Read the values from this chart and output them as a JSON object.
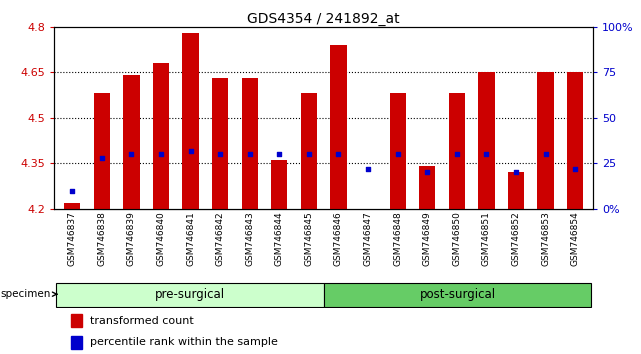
{
  "title": "GDS4354 / 241892_at",
  "samples": [
    "GSM746837",
    "GSM746838",
    "GSM746839",
    "GSM746840",
    "GSM746841",
    "GSM746842",
    "GSM746843",
    "GSM746844",
    "GSM746845",
    "GSM746846",
    "GSM746847",
    "GSM746848",
    "GSM746849",
    "GSM746850",
    "GSM746851",
    "GSM746852",
    "GSM746853",
    "GSM746854"
  ],
  "bar_tops": [
    4.22,
    4.58,
    4.64,
    4.68,
    4.78,
    4.63,
    4.63,
    4.36,
    4.58,
    4.74,
    4.14,
    4.58,
    4.34,
    4.58,
    4.65,
    4.32,
    4.65,
    4.65
  ],
  "percentile_vals": [
    10,
    28,
    30,
    30,
    32,
    30,
    30,
    30,
    30,
    30,
    22,
    30,
    20,
    30,
    30,
    20,
    30,
    22
  ],
  "bar_bottom": 4.2,
  "ylim_left": [
    4.2,
    4.8
  ],
  "ylim_right": [
    0,
    100
  ],
  "yticks_left": [
    4.2,
    4.35,
    4.5,
    4.65,
    4.8
  ],
  "yticks_right": [
    0,
    25,
    50,
    75,
    100
  ],
  "hlines": [
    4.35,
    4.5,
    4.65
  ],
  "bar_color": "#cc0000",
  "blue_color": "#0000cc",
  "pre_surgical_count": 9,
  "pre_surgical_label": "pre-surgical",
  "post_surgical_label": "post-surgical",
  "specimen_label": "specimen",
  "legend_bar_label": "transformed count",
  "legend_pct_label": "percentile rank within the sample",
  "pre_color": "#ccffcc",
  "post_color": "#66cc66",
  "tick_bg_color": "#d0d0d0",
  "xlabel_color": "#cc0000",
  "right_axis_color": "#0000cc",
  "title_fontsize": 10,
  "tick_label_fontsize": 6.5,
  "bar_width": 0.55
}
